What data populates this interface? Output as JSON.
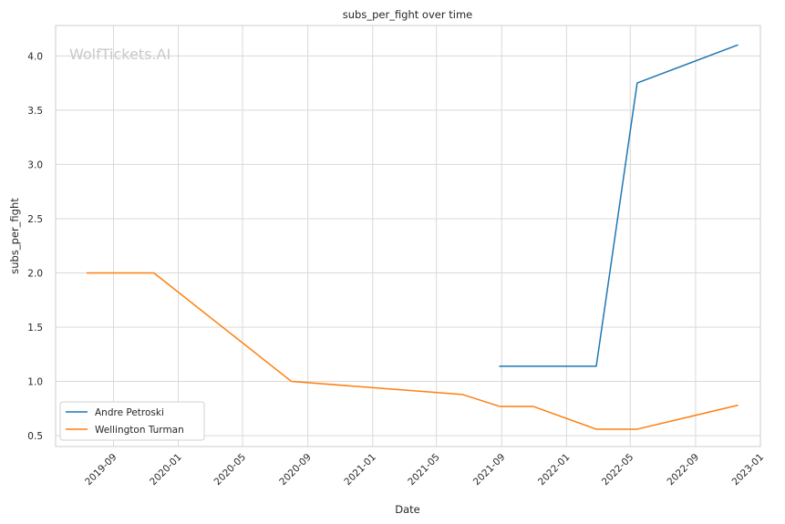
{
  "watermark": "WolfTickets.AI",
  "chart_data": {
    "type": "line",
    "title": "subs_per_fight over time",
    "xlabel": "Date",
    "ylabel": "subs_per_fight",
    "xlim": [
      "2019-05-15",
      "2023-01-01"
    ],
    "ylim": [
      0.4,
      4.28
    ],
    "grid": true,
    "legend": "lower-left",
    "x_ticks": [
      "2019-09",
      "2020-01",
      "2020-05",
      "2020-09",
      "2021-01",
      "2021-05",
      "2021-09",
      "2022-01",
      "2022-05",
      "2022-09",
      "2023-01"
    ],
    "y_ticks": [
      "0.5",
      "1.0",
      "1.5",
      "2.0",
      "2.5",
      "3.0",
      "3.5",
      "4.0"
    ],
    "series": [
      {
        "name": "Andre Petroski",
        "color": "#1f77b4",
        "x": [
          "2021-08-28",
          "2022-02-26",
          "2022-05-14",
          "2022-11-19"
        ],
        "y": [
          1.14,
          1.14,
          3.75,
          4.1
        ]
      },
      {
        "name": "Wellington Turman",
        "color": "#ff7f0e",
        "x": [
          "2019-07-13",
          "2019-11-16",
          "2020-08-01",
          "2021-06-19",
          "2021-08-28",
          "2021-10-30",
          "2022-02-26",
          "2022-05-14",
          "2022-11-19"
        ],
        "y": [
          2.0,
          2.0,
          1.0,
          0.88,
          0.77,
          0.77,
          0.56,
          0.56,
          0.78
        ]
      }
    ]
  }
}
